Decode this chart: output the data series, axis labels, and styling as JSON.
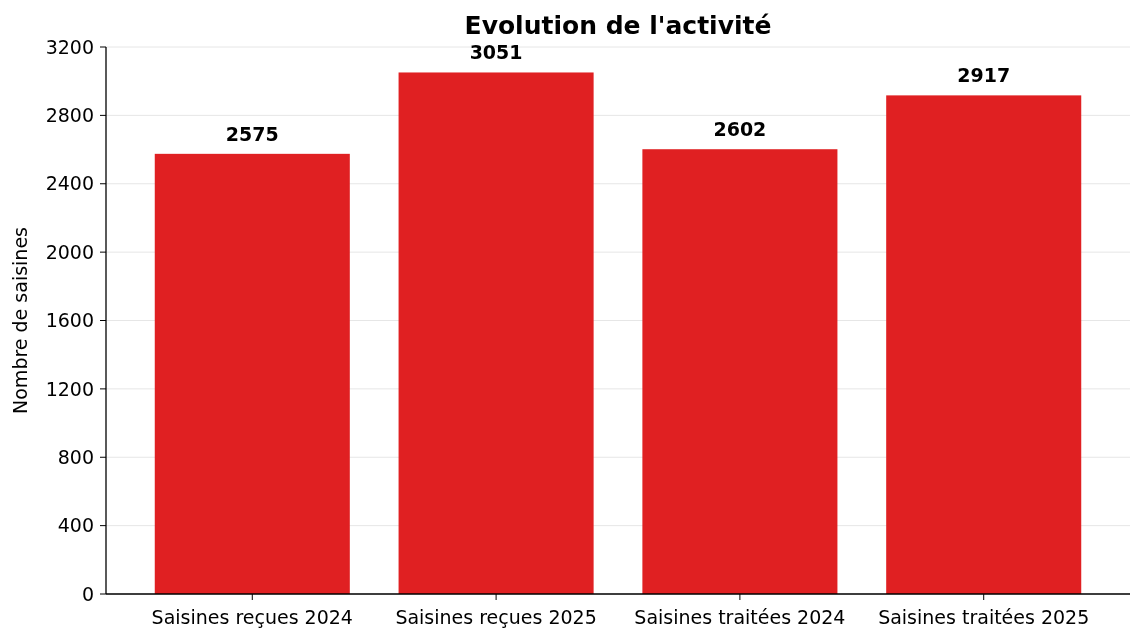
{
  "chart_data": {
    "type": "bar",
    "title": "Evolution de l'activité",
    "ylabel": "Nombre de saisines",
    "categories": [
      "Saisines reçues 2024",
      "Saisines reçues 2025",
      "Saisines traitées 2024",
      "Saisines traitées 2025"
    ],
    "values": [
      2575,
      3051,
      2602,
      2917
    ],
    "color": "#e02022",
    "ylim": [
      0,
      3200
    ],
    "yticks": [
      0,
      400,
      800,
      1200,
      1600,
      2000,
      2400,
      2800,
      3200
    ],
    "grid": "y",
    "data_labels": true
  }
}
